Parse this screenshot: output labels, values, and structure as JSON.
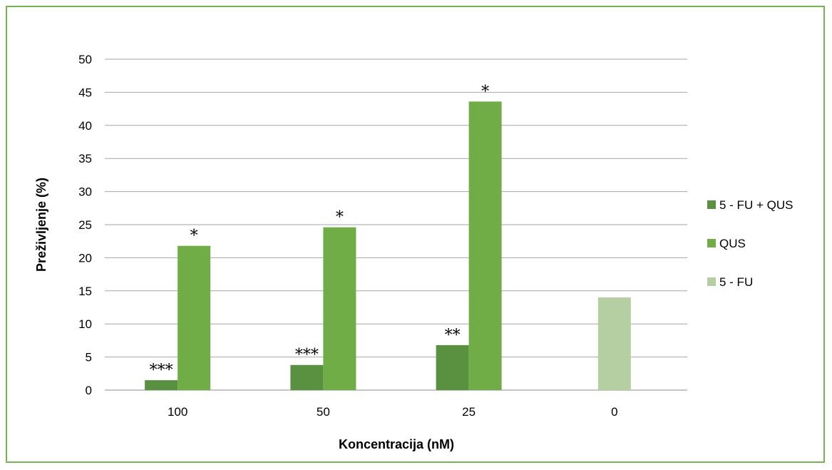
{
  "chart_data": {
    "type": "bar",
    "title": "",
    "xlabel": "Koncentracija (nM)",
    "ylabel": "Preživljenje (%)",
    "categories": [
      "100",
      "50",
      "25",
      "0"
    ],
    "ylim": [
      0,
      50
    ],
    "yticks": [
      "0",
      "5",
      "10",
      "15",
      "20",
      "25",
      "30",
      "35",
      "40",
      "45",
      "50"
    ],
    "grid": true,
    "legend_position": "right",
    "series": [
      {
        "name": "5 - FU + QUS",
        "color": "#5a9140",
        "values": [
          1.5,
          3.8,
          6.8,
          null
        ],
        "annotations": [
          "***",
          "***",
          "**",
          ""
        ]
      },
      {
        "name": "QUS",
        "color": "#70ad47",
        "values": [
          21.8,
          24.6,
          43.6,
          null
        ],
        "annotations": [
          "*",
          "*",
          "*",
          ""
        ]
      },
      {
        "name": "5 - FU",
        "color": "#b5cfa3",
        "values": [
          null,
          null,
          null,
          14.0
        ],
        "annotations": [
          "",
          "",
          "",
          ""
        ]
      }
    ]
  }
}
